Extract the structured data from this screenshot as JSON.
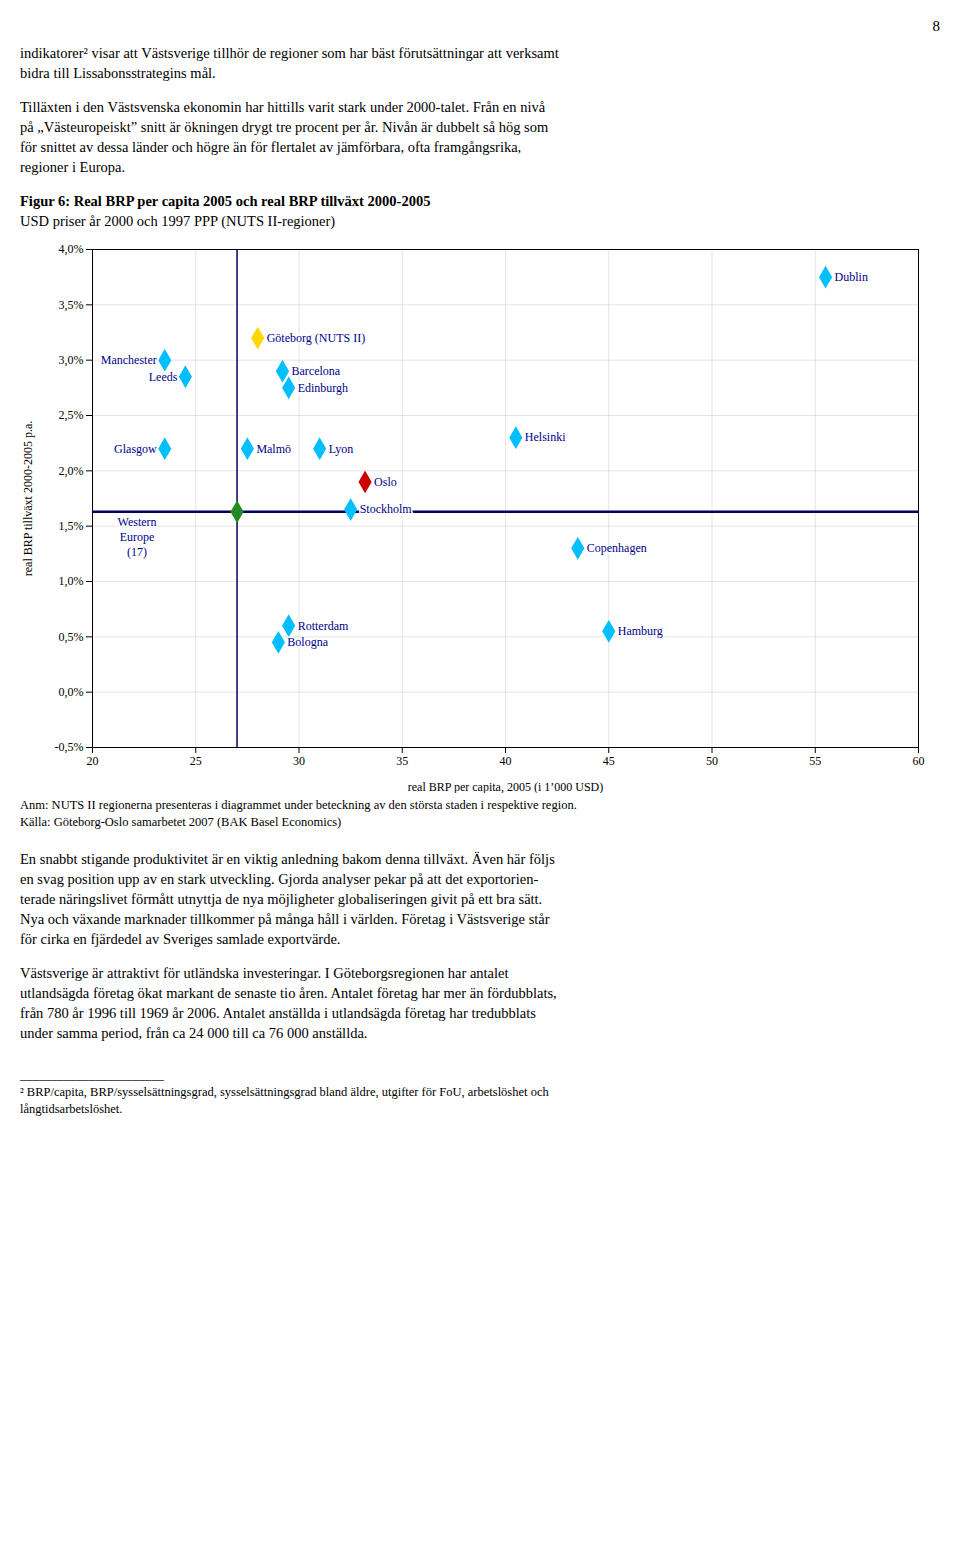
{
  "page": {
    "page_number": "8",
    "paragraphs_before": [
      [
        "indikatorer² visar att Västsverige tillhör de regioner som har bäst förutsättningar att verksamt",
        "bidra till Lissabonsstrategins mål."
      ],
      [
        "Tilläxten i den Västsvenska ekonomin har hittills varit stark under 2000-talet. Från en nivå",
        "på „Västeuropeiskt” snitt är ökningen drygt tre procent per år. Nivån är dubbelt så hög som",
        "för snittet av dessa länder och högre än för flertalet av jämförbara, ofta framgångsrika,",
        "regioner i Europa."
      ]
    ],
    "paragraphs_after": [
      [
        "En snabbt stigande produktivitet är en viktig anledning bakom denna tillväxt. Även här följs",
        "en svag position upp av en stark utveckling. Gjorda analyser pekar på att det exportorien-",
        "terade näringslivet förmått utnyttja de nya möjligheter globaliseringen givit på ett bra sätt.",
        "Nya och växande marknader tillkommer på många håll i världen. Företag i Västsverige står",
        "för cirka en fjärdedel av Sveriges samlade exportvärde."
      ],
      [
        "Västsverige är attraktivt för utländska investeringar. I Göteborgsregionen har antalet",
        "utlandsägda företag ökat markant de senaste tio åren. Antalet företag har mer än fördubblats,",
        "från 780 år 1996 till 1969 år 2006. Antalet anställda i utlandsägda företag har tredubblats",
        "under samma period, från ca 24 000 till ca 76 000 anställda."
      ]
    ],
    "footnotes": [
      "_______________________",
      "² BRP/capita, BRP/sysselsättningsgrad, sysselsättningsgrad bland äldre, utgifter för FoU, arbetslöshet och",
      "långtidsarbetslöshet."
    ]
  },
  "chart_data": {
    "type": "scatter",
    "title": "Figur 6: Real BRP per capita 2005 och real BRP tillväxt 2000-2005",
    "subtitle": "USD priser år 2000 och 1997 PPP (NUTS II-regioner)",
    "xlabel": "real BRP per capita, 2005 (i 1’000 USD)",
    "ylabel": "real BRP tillväxt 2000-2005 p.a.",
    "labels": [
      "Dublin",
      "Göteborg (NUTS II)",
      "Barcelona",
      "Edinburgh",
      "Manchester",
      "Leeds",
      "Glasgow",
      "Malmö",
      "Lyon",
      "Helsinki",
      "Oslo",
      "Stockholm",
      "Copenhagen",
      "Rotterdam",
      "Bologna",
      "Hamburg",
      "Western\nEurope\n(17)"
    ],
    "x": [
      55.5,
      28.0,
      29.2,
      29.5,
      23.5,
      24.5,
      23.5,
      27.5,
      31.0,
      40.5,
      33.2,
      32.5,
      43.5,
      29.5,
      29.0,
      45.0,
      27.0
    ],
    "y": [
      0.0375,
      0.032,
      0.029,
      0.0275,
      0.03,
      0.0285,
      0.022,
      0.022,
      0.022,
      0.023,
      0.019,
      0.0165,
      0.013,
      0.006,
      0.0045,
      0.0055,
      0.0163
    ],
    "colors": [
      "#00BFFF",
      "#FFD700",
      "#00BFFF",
      "#00BFFF",
      "#00BFFF",
      "#00BFFF",
      "#00BFFF",
      "#00BFFF",
      "#00BFFF",
      "#00BFFF",
      "#CC0000",
      "#00BFFF",
      "#00BFFF",
      "#00BFFF",
      "#00BFFF",
      "#00BFFF",
      "#228B22"
    ],
    "marker": "diamond",
    "xlim": [
      20,
      60
    ],
    "ylim": [
      -0.005,
      0.04
    ],
    "xticks": [
      20,
      25,
      30,
      35,
      40,
      45,
      50,
      55,
      60
    ],
    "yticks": [
      {
        "value": -0.005,
        "label": "-0,5%"
      },
      {
        "value": 0.0,
        "label": "0,0%"
      },
      {
        "value": 0.005,
        "label": "0,5%"
      },
      {
        "value": 0.01,
        "label": "1,0%"
      },
      {
        "value": 0.015,
        "label": "1,5%"
      },
      {
        "value": 0.02,
        "label": "2,0%"
      },
      {
        "value": 0.025,
        "label": "2,5%"
      },
      {
        "value": 0.03,
        "label": "3,0%"
      },
      {
        "value": 0.035,
        "label": "3,5%"
      },
      {
        "value": 0.04,
        "label": "4,0%"
      }
    ],
    "grid": true,
    "reference_lines": [
      {
        "axis": "y",
        "value": 0.0163,
        "color": "#000060"
      },
      {
        "axis": "x",
        "value": 27.0,
        "color": "#000060"
      }
    ],
    "annotations": [
      "Anm: NUTS II regionerna presenteras i diagrammet under beteckning av den största staden i respektive region.",
      "Källa: Göteborg-Oslo samarbetet 2007 (BAK Basel Economics)"
    ]
  }
}
